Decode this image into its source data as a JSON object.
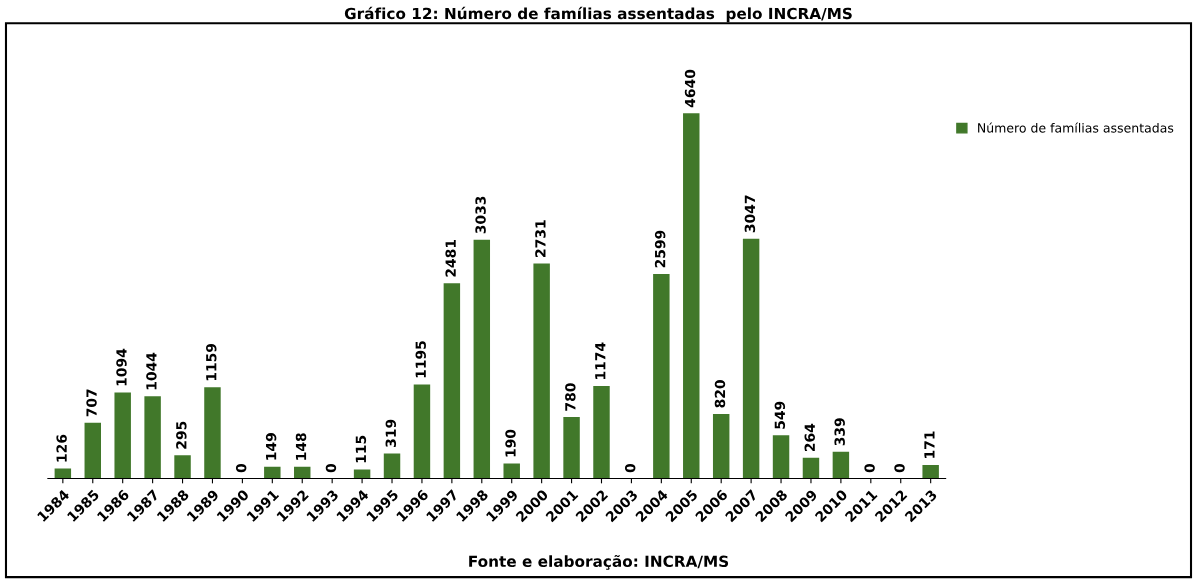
{
  "chart_data": {
    "type": "bar",
    "title": "Gráfico 12: Número de famílias assentadas  pelo INCRA/MS",
    "categories": [
      "1984",
      "1985",
      "1986",
      "1987",
      "1988",
      "1989",
      "1990",
      "1991",
      "1992",
      "1993",
      "1994",
      "1995",
      "1996",
      "1997",
      "1998",
      "1999",
      "2000",
      "2001",
      "2002",
      "2003",
      "2004",
      "2005",
      "2006",
      "2007",
      "2008",
      "2009",
      "2010",
      "2011",
      "2012",
      "2013"
    ],
    "series": [
      {
        "name": "Número de famílias assentadas",
        "color": "#41782a",
        "values": [
          126,
          707,
          1094,
          1044,
          295,
          1159,
          0,
          149,
          148,
          0,
          115,
          319,
          1195,
          2481,
          3033,
          190,
          2731,
          780,
          1174,
          0,
          2599,
          4640,
          820,
          3047,
          549,
          264,
          339,
          0,
          0,
          171
        ]
      }
    ],
    "data_labels": true,
    "legend": "top right",
    "grid": false,
    "tick_labels": "x",
    "annotations": [
      "Fonte e elaboração: INCRA/MS"
    ]
  }
}
